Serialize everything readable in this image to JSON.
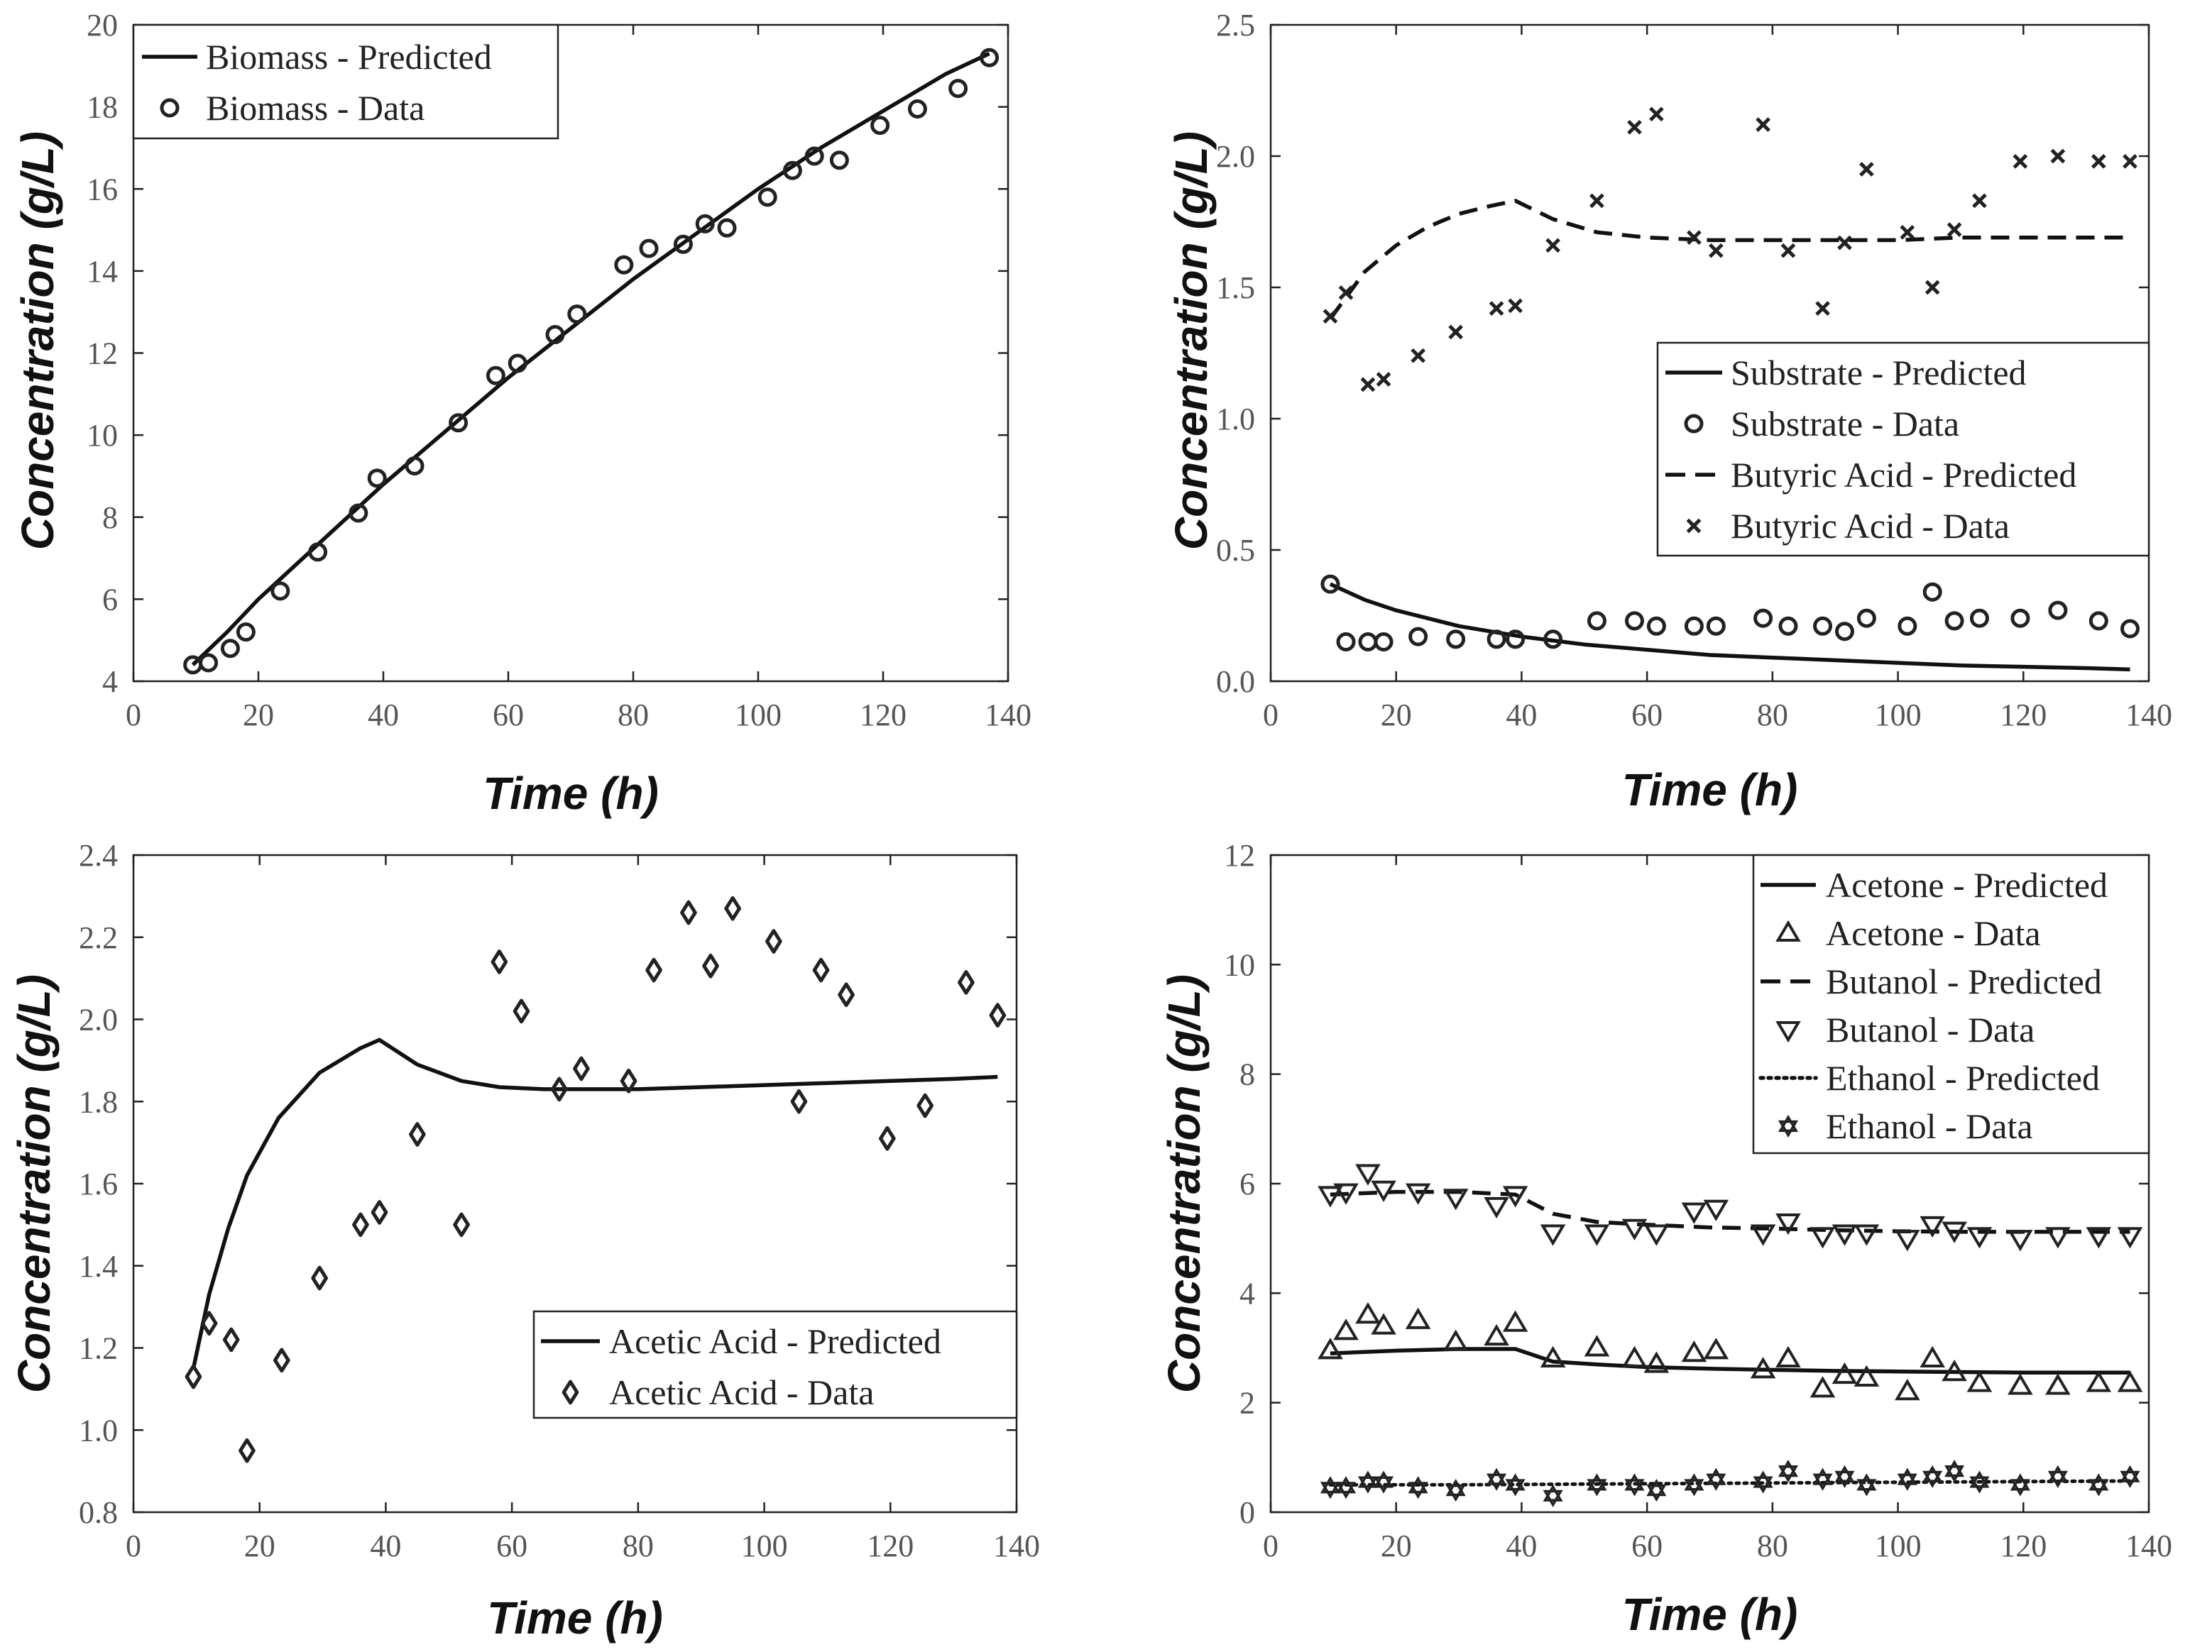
{
  "chart_data": [
    {
      "id": "biomass",
      "type": "line",
      "xlabel": "Time (h)",
      "ylabel": "Concentration (g/L)",
      "xlim": [
        0,
        140
      ],
      "ylim": [
        4,
        20
      ],
      "xticks": [
        "0",
        "20",
        "40",
        "60",
        "80",
        "100",
        "120",
        "140"
      ],
      "yticks": [
        "4",
        "6",
        "8",
        "10",
        "12",
        "14",
        "16",
        "18",
        "20"
      ],
      "legend_position": "top-left",
      "series": [
        {
          "name": "Biomass - Predicted",
          "kind": "line",
          "dash": "solid",
          "x": [
            9.5,
            15,
            20,
            30,
            40,
            50,
            60,
            70,
            80,
            90,
            100,
            110,
            120,
            130,
            137
          ],
          "y": [
            4.4,
            5.2,
            6.0,
            7.4,
            8.8,
            10.1,
            11.4,
            12.6,
            13.8,
            14.9,
            16.0,
            17.0,
            17.9,
            18.8,
            19.3
          ]
        },
        {
          "name": "Biomass - Data",
          "kind": "marker",
          "marker": "circle",
          "x": [
            9.5,
            12,
            15.5,
            18,
            23.5,
            29.5,
            36,
            39,
            45,
            52,
            58,
            61.5,
            67.5,
            71,
            78.5,
            82.5,
            88,
            91.5,
            95,
            101.5,
            105.5,
            109,
            113,
            119.5,
            125.5,
            132,
            137
          ],
          "y": [
            4.4,
            4.45,
            4.8,
            5.2,
            6.2,
            7.15,
            8.1,
            8.95,
            9.25,
            10.3,
            11.45,
            11.75,
            12.45,
            12.95,
            14.15,
            14.55,
            14.65,
            15.15,
            15.05,
            15.8,
            16.45,
            16.8,
            16.7,
            17.55,
            17.95,
            18.45,
            19.2
          ]
        }
      ]
    },
    {
      "id": "substrate-butyric",
      "type": "line",
      "xlabel": "Time (h)",
      "ylabel": "Concentration (g/L)",
      "xlim": [
        0,
        140
      ],
      "ylim": [
        0,
        2.5
      ],
      "xticks": [
        "0",
        "20",
        "40",
        "60",
        "80",
        "100",
        "120",
        "140"
      ],
      "yticks": [
        "0.0",
        "0.5",
        "1.0",
        "1.5",
        "2.0",
        "2.5"
      ],
      "legend_position": "middle-right",
      "series": [
        {
          "name": "Substrate - Predicted",
          "kind": "line",
          "dash": "solid",
          "x": [
            9.5,
            15,
            20,
            30,
            40,
            50,
            60,
            70,
            80,
            90,
            100,
            110,
            120,
            130,
            137
          ],
          "y": [
            0.37,
            0.31,
            0.27,
            0.21,
            0.17,
            0.14,
            0.12,
            0.1,
            0.09,
            0.08,
            0.07,
            0.06,
            0.055,
            0.05,
            0.045
          ]
        },
        {
          "name": "Substrate - Data",
          "kind": "marker",
          "marker": "circle",
          "x": [
            9.5,
            12,
            15.5,
            18,
            23.5,
            29.5,
            36,
            39,
            45,
            52,
            58,
            61.5,
            67.5,
            71,
            78.5,
            82.5,
            88,
            91.5,
            95,
            101.5,
            105.5,
            109,
            113,
            119.5,
            125.5,
            132,
            137
          ],
          "y": [
            0.37,
            0.15,
            0.15,
            0.15,
            0.17,
            0.16,
            0.16,
            0.16,
            0.16,
            0.23,
            0.23,
            0.21,
            0.21,
            0.21,
            0.24,
            0.21,
            0.21,
            0.19,
            0.24,
            0.21,
            0.34,
            0.23,
            0.24,
            0.24,
            0.27,
            0.23,
            0.2
          ]
        },
        {
          "name": "Butyric Acid - Predicted",
          "kind": "line",
          "dash": "dashed",
          "x": [
            9.5,
            15,
            20,
            25,
            30,
            35,
            39,
            45,
            52,
            60,
            70,
            80,
            90,
            100,
            110,
            120,
            130,
            137
          ],
          "y": [
            1.38,
            1.56,
            1.66,
            1.73,
            1.78,
            1.81,
            1.83,
            1.76,
            1.71,
            1.69,
            1.68,
            1.68,
            1.68,
            1.68,
            1.69,
            1.69,
            1.69,
            1.69
          ]
        },
        {
          "name": "Butyric Acid - Data",
          "kind": "marker",
          "marker": "x",
          "x": [
            9.5,
            12,
            15.5,
            18,
            23.5,
            29.5,
            36,
            39,
            45,
            52,
            58,
            61.5,
            67.5,
            71,
            78.5,
            82.5,
            88,
            91.5,
            95,
            101.5,
            105.5,
            109,
            113,
            119.5,
            125.5,
            132,
            137
          ],
          "y": [
            1.39,
            1.48,
            1.13,
            1.15,
            1.24,
            1.33,
            1.42,
            1.43,
            1.66,
            1.83,
            2.11,
            2.16,
            1.69,
            1.64,
            2.12,
            1.64,
            1.42,
            1.67,
            1.95,
            1.71,
            1.5,
            1.72,
            1.83,
            1.98,
            2.0,
            1.98,
            1.98
          ]
        }
      ]
    },
    {
      "id": "acetic",
      "type": "line",
      "xlabel": "Time (h)",
      "ylabel": "Concentration (g/L)",
      "xlim": [
        0,
        140
      ],
      "ylim": [
        0.8,
        2.4
      ],
      "xticks": [
        "0",
        "20",
        "40",
        "60",
        "80",
        "100",
        "120",
        "140"
      ],
      "yticks": [
        "0.8",
        "1.0",
        "1.2",
        "1.4",
        "1.6",
        "1.8",
        "2.0",
        "2.2",
        "2.4"
      ],
      "legend_position": "lower-right",
      "series": [
        {
          "name": "Acetic Acid - Predicted",
          "kind": "line",
          "dash": "solid",
          "x": [
            9.5,
            12,
            15,
            18,
            23,
            29.5,
            36,
            39,
            45,
            52,
            58,
            65,
            72,
            80,
            90,
            100,
            110,
            120,
            130,
            137
          ],
          "y": [
            1.15,
            1.33,
            1.49,
            1.62,
            1.76,
            1.87,
            1.93,
            1.95,
            1.89,
            1.85,
            1.835,
            1.83,
            1.83,
            1.83,
            1.835,
            1.84,
            1.845,
            1.85,
            1.855,
            1.86
          ]
        },
        {
          "name": "Acetic Acid - Data",
          "kind": "marker",
          "marker": "diamond",
          "x": [
            9.5,
            12,
            15.5,
            18,
            23.5,
            29.5,
            36,
            39,
            45,
            52,
            58,
            61.5,
            67.5,
            71,
            78.5,
            82.5,
            88,
            91.5,
            95,
            101.5,
            105.5,
            109,
            113,
            119.5,
            125.5,
            132,
            137
          ],
          "y": [
            1.13,
            1.26,
            1.22,
            0.95,
            1.17,
            1.37,
            1.5,
            1.53,
            1.72,
            1.5,
            2.14,
            2.02,
            1.83,
            1.88,
            1.85,
            2.12,
            2.26,
            2.13,
            2.27,
            2.19,
            1.8,
            2.12,
            2.06,
            1.71,
            1.79,
            2.09,
            2.01
          ]
        }
      ]
    },
    {
      "id": "solvents",
      "type": "line",
      "xlabel": "Time (h)",
      "ylabel": "Concentration (g/L)",
      "xlim": [
        0,
        140
      ],
      "ylim": [
        0,
        12
      ],
      "xticks": [
        "0",
        "20",
        "40",
        "60",
        "80",
        "100",
        "120",
        "140"
      ],
      "yticks": [
        "0",
        "2",
        "4",
        "6",
        "8",
        "10",
        "12"
      ],
      "legend_position": "top-right",
      "series": [
        {
          "name": "Acetone - Predicted",
          "kind": "line",
          "dash": "solid",
          "x": [
            9.5,
            20,
            30,
            39,
            45,
            52,
            60,
            70,
            80,
            90,
            100,
            110,
            120,
            130,
            137
          ],
          "y": [
            2.9,
            2.95,
            2.98,
            2.98,
            2.75,
            2.7,
            2.65,
            2.62,
            2.6,
            2.58,
            2.57,
            2.56,
            2.55,
            2.55,
            2.55
          ]
        },
        {
          "name": "Acetone - Data",
          "kind": "marker",
          "marker": "triangle-up",
          "x": [
            9.5,
            12,
            15.5,
            18,
            23.5,
            29.5,
            36,
            39,
            45,
            52,
            58,
            61.5,
            67.5,
            71,
            78.5,
            82.5,
            88,
            91.5,
            95,
            101.5,
            105.5,
            109,
            113,
            119.5,
            125.5,
            132,
            137
          ],
          "y": [
            2.95,
            3.3,
            3.6,
            3.4,
            3.5,
            3.1,
            3.2,
            3.45,
            2.8,
            3.0,
            2.8,
            2.7,
            2.9,
            2.95,
            2.6,
            2.8,
            2.25,
            2.5,
            2.45,
            2.2,
            2.8,
            2.55,
            2.35,
            2.3,
            2.3,
            2.35,
            2.35
          ]
        },
        {
          "name": "Butanol - Predicted",
          "kind": "line",
          "dash": "dashed",
          "x": [
            9.5,
            20,
            30,
            39,
            45,
            52,
            60,
            70,
            80,
            90,
            100,
            110,
            120,
            130,
            137
          ],
          "y": [
            5.8,
            5.85,
            5.85,
            5.8,
            5.45,
            5.3,
            5.25,
            5.2,
            5.18,
            5.15,
            5.13,
            5.12,
            5.12,
            5.12,
            5.12
          ]
        },
        {
          "name": "Butanol - Data",
          "kind": "marker",
          "marker": "triangle-down",
          "x": [
            9.5,
            12,
            15.5,
            18,
            23.5,
            29.5,
            36,
            39,
            45,
            52,
            58,
            61.5,
            67.5,
            71,
            78.5,
            82.5,
            88,
            91.5,
            95,
            101.5,
            105.5,
            109,
            113,
            119.5,
            125.5,
            132,
            137
          ],
          "y": [
            5.8,
            5.85,
            6.2,
            5.9,
            5.85,
            5.75,
            5.6,
            5.8,
            5.1,
            5.1,
            5.2,
            5.1,
            5.5,
            5.55,
            5.1,
            5.3,
            5.05,
            5.1,
            5.1,
            5.0,
            5.25,
            5.15,
            5.05,
            5.0,
            5.05,
            5.05,
            5.05
          ]
        },
        {
          "name": "Ethanol - Predicted",
          "kind": "line",
          "dash": "dotted",
          "x": [
            9.5,
            30,
            60,
            90,
            120,
            137
          ],
          "y": [
            0.5,
            0.5,
            0.52,
            0.54,
            0.56,
            0.57
          ]
        },
        {
          "name": "Ethanol - Data",
          "kind": "marker",
          "marker": "star",
          "x": [
            9.5,
            12,
            15.5,
            18,
            23.5,
            29.5,
            36,
            39,
            45,
            52,
            58,
            61.5,
            67.5,
            71,
            78.5,
            82.5,
            88,
            91.5,
            95,
            101.5,
            105.5,
            109,
            113,
            119.5,
            125.5,
            132,
            137
          ],
          "y": [
            0.45,
            0.45,
            0.55,
            0.55,
            0.45,
            0.4,
            0.6,
            0.5,
            0.3,
            0.5,
            0.5,
            0.4,
            0.5,
            0.6,
            0.55,
            0.75,
            0.6,
            0.65,
            0.5,
            0.6,
            0.65,
            0.75,
            0.55,
            0.5,
            0.65,
            0.5,
            0.65
          ]
        }
      ]
    }
  ]
}
